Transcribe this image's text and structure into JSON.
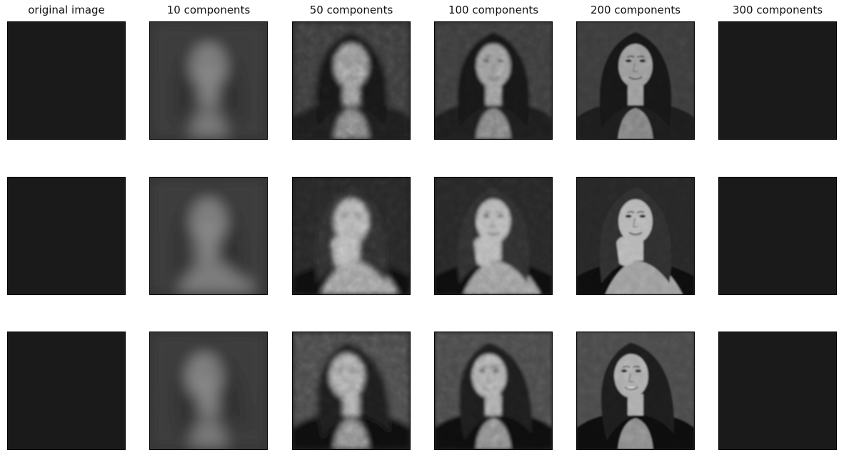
{
  "figure": {
    "columns": [
      {
        "title": "original image",
        "components": null,
        "blur": 0,
        "noise": 0
      },
      {
        "title": "10 components",
        "components": 10,
        "blur": 10,
        "noise": 0
      },
      {
        "title": "50 components",
        "components": 50,
        "blur": 4,
        "noise": 0.55
      },
      {
        "title": "100 components",
        "components": 100,
        "blur": 2.5,
        "noise": 0.45
      },
      {
        "title": "200 components",
        "components": 200,
        "blur": 1.2,
        "noise": 0.3
      },
      {
        "title": "300 components",
        "components": 300,
        "blur": 0,
        "noise": 0
      }
    ],
    "rows": [
      {
        "subject": "portrait-1",
        "hair": "#141414",
        "skin": "#9a9a9a",
        "clothing": "#1e1e1e",
        "background": "#3a3a3a",
        "pose": "front"
      },
      {
        "subject": "portrait-2",
        "hair": "#2e2e2e",
        "skin": "#b4b4b4",
        "clothing": "#101010",
        "background": "#262626",
        "pose": "hand-on-chin"
      },
      {
        "subject": "portrait-3",
        "hair": "#1a1a1a",
        "skin": "#aaaaaa",
        "clothing": "#0c0c0c",
        "background": "#4a4a4a",
        "pose": "tilted"
      }
    ],
    "colors": {
      "text": "#111111",
      "frame": "#000000"
    }
  }
}
